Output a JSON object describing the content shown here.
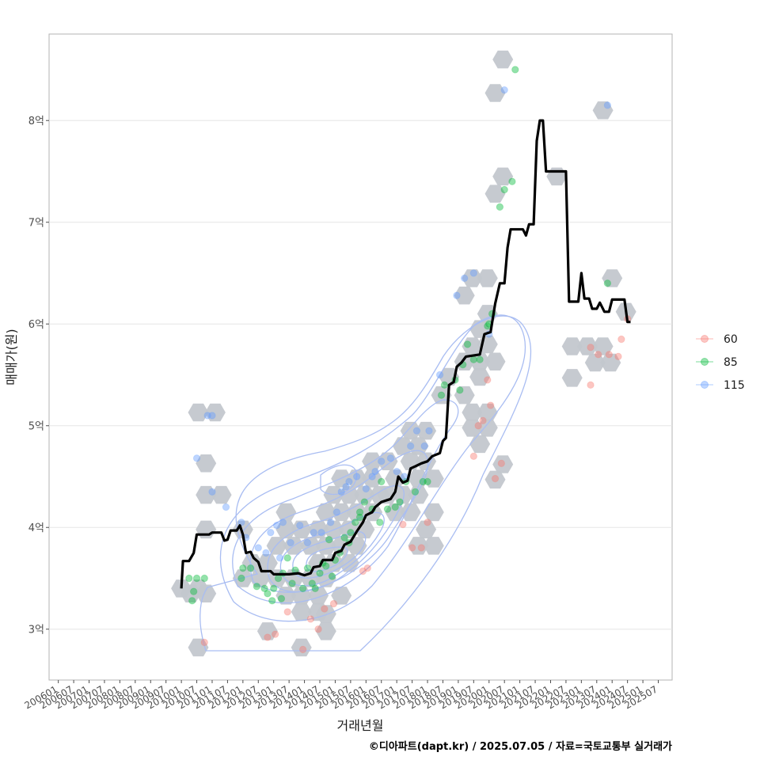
{
  "chart_data": {
    "type": "scatter",
    "xlabel": "거래년월",
    "ylabel": "매매가(원)",
    "caption": "©디아파트(dapt.kr) / 2025.07.05 / 자료=국토교통부 실거래가",
    "x_ticks": [
      "200601",
      "200607",
      "200701",
      "200707",
      "200801",
      "200807",
      "200901",
      "200907",
      "201001",
      "201007",
      "201101",
      "201107",
      "201201",
      "201207",
      "201301",
      "201307",
      "201401",
      "201407",
      "201501",
      "201507",
      "201601",
      "201607",
      "201701",
      "201707",
      "201801",
      "201807",
      "201901",
      "201907",
      "202001",
      "202007",
      "202101",
      "202107",
      "202201",
      "202207",
      "202301",
      "202307",
      "202401",
      "202407",
      "202501",
      "202507"
    ],
    "y_ticks": [
      {
        "value": 3,
        "label": "3억"
      },
      {
        "value": 4,
        "label": "4억"
      },
      {
        "value": 5,
        "label": "5억"
      },
      {
        "value": 6,
        "label": "6억"
      },
      {
        "value": 7,
        "label": "7억"
      },
      {
        "value": 8,
        "label": "8억"
      }
    ],
    "x_range": [
      2005.7,
      2025.95
    ],
    "y_range": [
      2.5,
      8.85
    ],
    "legend": [
      {
        "name": "60",
        "color": "#F8766D"
      },
      {
        "name": "85",
        "color": "#00BA38"
      },
      {
        "name": "115",
        "color": "#619CFF"
      }
    ],
    "median_line": [
      [
        2010.0,
        3.4
      ],
      [
        2010.05,
        3.67
      ],
      [
        2010.25,
        3.67
      ],
      [
        2010.4,
        3.75
      ],
      [
        2010.5,
        3.93
      ],
      [
        2010.9,
        3.93
      ],
      [
        2011.0,
        3.95
      ],
      [
        2011.3,
        3.95
      ],
      [
        2011.4,
        3.87
      ],
      [
        2011.5,
        3.88
      ],
      [
        2011.6,
        3.97
      ],
      [
        2011.8,
        3.97
      ],
      [
        2011.9,
        4.02
      ],
      [
        2012.0,
        3.93
      ],
      [
        2012.1,
        3.75
      ],
      [
        2012.25,
        3.76
      ],
      [
        2012.35,
        3.7
      ],
      [
        2012.5,
        3.66
      ],
      [
        2012.6,
        3.57
      ],
      [
        2012.9,
        3.57
      ],
      [
        2013.0,
        3.54
      ],
      [
        2013.5,
        3.54
      ],
      [
        2013.8,
        3.55
      ],
      [
        2014.0,
        3.53
      ],
      [
        2014.2,
        3.55
      ],
      [
        2014.3,
        3.61
      ],
      [
        2014.5,
        3.62
      ],
      [
        2014.6,
        3.68
      ],
      [
        2014.9,
        3.68
      ],
      [
        2015.0,
        3.75
      ],
      [
        2015.2,
        3.77
      ],
      [
        2015.3,
        3.83
      ],
      [
        2015.5,
        3.86
      ],
      [
        2015.7,
        3.96
      ],
      [
        2015.9,
        4.05
      ],
      [
        2016.0,
        4.12
      ],
      [
        2016.2,
        4.15
      ],
      [
        2016.3,
        4.2
      ],
      [
        2016.5,
        4.25
      ],
      [
        2016.8,
        4.28
      ],
      [
        2016.95,
        4.35
      ],
      [
        2017.05,
        4.5
      ],
      [
        2017.2,
        4.44
      ],
      [
        2017.35,
        4.46
      ],
      [
        2017.45,
        4.58
      ],
      [
        2017.6,
        4.6
      ],
      [
        2017.8,
        4.63
      ],
      [
        2018.0,
        4.65
      ],
      [
        2018.15,
        4.7
      ],
      [
        2018.4,
        4.73
      ],
      [
        2018.5,
        4.85
      ],
      [
        2018.6,
        4.88
      ],
      [
        2018.7,
        5.4
      ],
      [
        2018.85,
        5.43
      ],
      [
        2018.95,
        5.58
      ],
      [
        2019.1,
        5.62
      ],
      [
        2019.25,
        5.68
      ],
      [
        2019.7,
        5.7
      ],
      [
        2019.85,
        5.9
      ],
      [
        2020.05,
        5.92
      ],
      [
        2020.2,
        6.2
      ],
      [
        2020.35,
        6.4
      ],
      [
        2020.5,
        6.4
      ],
      [
        2020.6,
        6.75
      ],
      [
        2020.7,
        6.93
      ],
      [
        2021.1,
        6.93
      ],
      [
        2021.2,
        6.87
      ],
      [
        2021.3,
        6.98
      ],
      [
        2021.45,
        6.98
      ],
      [
        2021.55,
        7.8
      ],
      [
        2021.65,
        8.0
      ],
      [
        2021.75,
        8.0
      ],
      [
        2021.85,
        7.5
      ],
      [
        2022.2,
        7.5
      ],
      [
        2022.5,
        7.5
      ],
      [
        2022.6,
        6.22
      ],
      [
        2022.9,
        6.22
      ],
      [
        2023.0,
        6.5
      ],
      [
        2023.1,
        6.25
      ],
      [
        2023.25,
        6.25
      ],
      [
        2023.35,
        6.15
      ],
      [
        2023.5,
        6.15
      ],
      [
        2023.6,
        6.21
      ],
      [
        2023.75,
        6.12
      ],
      [
        2023.9,
        6.12
      ],
      [
        2024.0,
        6.24
      ],
      [
        2024.4,
        6.24
      ],
      [
        2024.5,
        6.02
      ],
      [
        2024.6,
        6.02
      ]
    ],
    "hexes": [
      [
        2010.0,
        3.4
      ],
      [
        2010.3,
        3.35
      ],
      [
        2010.55,
        3.4
      ],
      [
        2010.8,
        3.35
      ],
      [
        2010.55,
        2.82
      ],
      [
        2010.55,
        5.13
      ],
      [
        2011.1,
        5.13
      ],
      [
        2010.8,
        4.63
      ],
      [
        2010.8,
        4.32
      ],
      [
        2011.3,
        4.32
      ],
      [
        2010.8,
        3.98
      ],
      [
        2012.0,
        3.98
      ],
      [
        2012.0,
        3.5
      ],
      [
        2012.55,
        3.5
      ],
      [
        2012.3,
        3.65
      ],
      [
        2012.8,
        3.65
      ],
      [
        2013.1,
        3.82
      ],
      [
        2013.4,
        3.98
      ],
      [
        2013.4,
        4.15
      ],
      [
        2013.65,
        3.82
      ],
      [
        2013.9,
        3.98
      ],
      [
        2013.1,
        3.5
      ],
      [
        2013.65,
        3.5
      ],
      [
        2014.2,
        3.5
      ],
      [
        2014.7,
        3.5
      ],
      [
        2013.4,
        3.33
      ],
      [
        2013.9,
        3.33
      ],
      [
        2014.45,
        3.33
      ],
      [
        2013.9,
        3.17
      ],
      [
        2014.45,
        3.17
      ],
      [
        2012.8,
        2.98
      ],
      [
        2013.9,
        2.82
      ],
      [
        2014.7,
        2.98
      ],
      [
        2014.7,
        3.15
      ],
      [
        2014.45,
        3.65
      ],
      [
        2014.95,
        3.65
      ],
      [
        2014.2,
        3.82
      ],
      [
        2014.7,
        3.82
      ],
      [
        2014.45,
        3.98
      ],
      [
        2014.95,
        3.98
      ],
      [
        2014.7,
        4.15
      ],
      [
        2015.2,
        4.15
      ],
      [
        2014.95,
        4.32
      ],
      [
        2015.45,
        4.32
      ],
      [
        2015.2,
        4.48
      ],
      [
        2015.7,
        4.48
      ],
      [
        2015.45,
        3.65
      ],
      [
        2015.2,
        3.82
      ],
      [
        2015.7,
        3.82
      ],
      [
        2015.2,
        3.33
      ],
      [
        2015.45,
        3.98
      ],
      [
        2015.95,
        3.98
      ],
      [
        2015.7,
        4.15
      ],
      [
        2016.2,
        4.15
      ],
      [
        2015.95,
        4.32
      ],
      [
        2016.45,
        4.32
      ],
      [
        2016.2,
        4.48
      ],
      [
        2016.2,
        4.65
      ],
      [
        2016.7,
        4.65
      ],
      [
        2016.95,
        4.48
      ],
      [
        2016.7,
        4.32
      ],
      [
        2017.2,
        4.32
      ],
      [
        2016.95,
        4.15
      ],
      [
        2017.45,
        4.15
      ],
      [
        2017.7,
        4.32
      ],
      [
        2017.7,
        4.48
      ],
      [
        2018.2,
        4.48
      ],
      [
        2017.45,
        4.65
      ],
      [
        2017.2,
        4.8
      ],
      [
        2017.7,
        4.8
      ],
      [
        2017.45,
        4.95
      ],
      [
        2017.95,
        4.95
      ],
      [
        2017.95,
        4.65
      ],
      [
        2018.2,
        4.15
      ],
      [
        2017.95,
        3.98
      ],
      [
        2017.7,
        3.82
      ],
      [
        2018.2,
        3.82
      ],
      [
        2018.45,
        5.3
      ],
      [
        2018.7,
        5.48
      ],
      [
        2019.2,
        5.3
      ],
      [
        2019.45,
        5.13
      ],
      [
        2019.2,
        5.63
      ],
      [
        2019.7,
        5.63
      ],
      [
        2019.45,
        5.78
      ],
      [
        2019.7,
        5.48
      ],
      [
        2019.45,
        4.98
      ],
      [
        2019.95,
        4.98
      ],
      [
        2019.7,
        4.82
      ],
      [
        2019.95,
        5.13
      ],
      [
        2019.2,
        6.28
      ],
      [
        2019.45,
        6.45
      ],
      [
        2019.95,
        6.45
      ],
      [
        2019.95,
        6.1
      ],
      [
        2019.7,
        5.95
      ],
      [
        2020.2,
        5.63
      ],
      [
        2019.95,
        5.8
      ],
      [
        2020.2,
        4.47
      ],
      [
        2020.45,
        4.62
      ],
      [
        2020.2,
        7.28
      ],
      [
        2020.45,
        7.45
      ],
      [
        2020.2,
        8.27
      ],
      [
        2020.45,
        8.6
      ],
      [
        2022.2,
        7.45
      ],
      [
        2022.7,
        5.78
      ],
      [
        2022.7,
        5.47
      ],
      [
        2023.2,
        5.78
      ],
      [
        2023.7,
        5.78
      ],
      [
        2023.45,
        5.62
      ],
      [
        2023.95,
        5.62
      ],
      [
        2023.7,
        8.1
      ],
      [
        2024.0,
        6.45
      ],
      [
        2024.45,
        6.12
      ]
    ],
    "series": [
      {
        "name": "60",
        "points": [
          [
            2010.75,
            2.87
          ],
          [
            2012.8,
            2.92
          ],
          [
            2013.05,
            2.95
          ],
          [
            2013.45,
            3.17
          ],
          [
            2013.95,
            2.8
          ],
          [
            2014.2,
            3.1
          ],
          [
            2014.45,
            3.0
          ],
          [
            2014.65,
            3.2
          ],
          [
            2014.95,
            3.25
          ],
          [
            2015.9,
            3.57
          ],
          [
            2016.05,
            3.6
          ],
          [
            2017.2,
            4.03
          ],
          [
            2017.5,
            3.8
          ],
          [
            2017.8,
            3.8
          ],
          [
            2018.0,
            4.05
          ],
          [
            2019.5,
            4.7
          ],
          [
            2019.65,
            5.0
          ],
          [
            2019.8,
            5.05
          ],
          [
            2019.95,
            5.45
          ],
          [
            2020.05,
            5.2
          ],
          [
            2020.2,
            4.48
          ],
          [
            2020.4,
            4.63
          ],
          [
            2023.3,
            5.4
          ],
          [
            2023.3,
            5.77
          ],
          [
            2023.55,
            5.7
          ],
          [
            2023.9,
            5.7
          ],
          [
            2024.2,
            5.68
          ],
          [
            2024.3,
            5.85
          ],
          [
            2024.5,
            6.05
          ]
        ]
      },
      {
        "name": "85",
        "points": [
          [
            2010.25,
            3.5
          ],
          [
            2010.5,
            3.5
          ],
          [
            2010.4,
            3.37
          ],
          [
            2010.35,
            3.28
          ],
          [
            2010.75,
            3.5
          ],
          [
            2011.95,
            3.5
          ],
          [
            2012.0,
            3.6
          ],
          [
            2012.45,
            3.42
          ],
          [
            2012.7,
            3.4
          ],
          [
            2012.8,
            3.35
          ],
          [
            2012.95,
            3.28
          ],
          [
            2013.0,
            3.4
          ],
          [
            2013.15,
            3.5
          ],
          [
            2013.3,
            3.55
          ],
          [
            2013.45,
            3.7
          ],
          [
            2013.6,
            3.45
          ],
          [
            2013.7,
            3.58
          ],
          [
            2013.95,
            3.4
          ],
          [
            2014.1,
            3.6
          ],
          [
            2014.35,
            3.4
          ],
          [
            2014.5,
            3.55
          ],
          [
            2014.6,
            3.65
          ],
          [
            2014.7,
            3.62
          ],
          [
            2014.9,
            3.52
          ],
          [
            2015.0,
            3.68
          ],
          [
            2015.15,
            3.75
          ],
          [
            2015.3,
            3.9
          ],
          [
            2015.5,
            3.95
          ],
          [
            2015.65,
            4.05
          ],
          [
            2015.8,
            4.1
          ],
          [
            2015.95,
            4.25
          ],
          [
            2016.2,
            4.18
          ],
          [
            2016.45,
            4.05
          ],
          [
            2016.7,
            4.18
          ],
          [
            2016.95,
            4.2
          ],
          [
            2017.1,
            4.25
          ],
          [
            2017.3,
            4.45
          ],
          [
            2017.6,
            4.35
          ],
          [
            2017.85,
            4.45
          ],
          [
            2018.0,
            4.45
          ],
          [
            2018.45,
            5.3
          ],
          [
            2018.55,
            5.4
          ],
          [
            2018.9,
            5.45
          ],
          [
            2019.05,
            5.35
          ],
          [
            2019.15,
            5.6
          ],
          [
            2019.3,
            5.8
          ],
          [
            2019.5,
            5.65
          ],
          [
            2019.7,
            5.65
          ],
          [
            2019.95,
            5.98
          ],
          [
            2020.0,
            6.0
          ],
          [
            2020.1,
            6.1
          ],
          [
            2020.35,
            7.15
          ],
          [
            2020.5,
            7.32
          ],
          [
            2020.75,
            7.4
          ],
          [
            2020.85,
            8.5
          ],
          [
            2023.85,
            6.4
          ],
          [
            2015.45,
            3.85
          ],
          [
            2015.8,
            4.15
          ],
          [
            2016.5,
            4.45
          ],
          [
            2014.25,
            3.45
          ],
          [
            2013.25,
            3.3
          ],
          [
            2012.25,
            3.6
          ],
          [
            2014.8,
            3.88
          ]
        ]
      },
      {
        "name": "115",
        "points": [
          [
            2010.5,
            4.68
          ],
          [
            2010.85,
            5.1
          ],
          [
            2011.0,
            5.1
          ],
          [
            2011.0,
            4.35
          ],
          [
            2011.45,
            4.2
          ],
          [
            2011.95,
            4.05
          ],
          [
            2012.1,
            3.9
          ],
          [
            2012.5,
            3.8
          ],
          [
            2012.9,
            3.95
          ],
          [
            2013.1,
            4.02
          ],
          [
            2013.3,
            4.05
          ],
          [
            2013.55,
            3.85
          ],
          [
            2013.85,
            4.02
          ],
          [
            2014.1,
            3.85
          ],
          [
            2014.3,
            3.95
          ],
          [
            2014.55,
            3.95
          ],
          [
            2014.85,
            4.05
          ],
          [
            2015.05,
            4.15
          ],
          [
            2015.2,
            4.35
          ],
          [
            2015.45,
            4.45
          ],
          [
            2015.7,
            4.5
          ],
          [
            2016.0,
            4.38
          ],
          [
            2016.3,
            4.55
          ],
          [
            2016.5,
            4.65
          ],
          [
            2016.8,
            4.68
          ],
          [
            2017.0,
            4.55
          ],
          [
            2017.25,
            4.5
          ],
          [
            2017.45,
            4.8
          ],
          [
            2017.65,
            4.95
          ],
          [
            2017.9,
            4.8
          ],
          [
            2018.05,
            4.95
          ],
          [
            2018.4,
            5.5
          ],
          [
            2018.95,
            6.28
          ],
          [
            2019.2,
            6.45
          ],
          [
            2019.5,
            6.5
          ],
          [
            2020.0,
            5.9
          ],
          [
            2020.5,
            8.3
          ],
          [
            2023.85,
            8.15
          ],
          [
            2015.35,
            4.4
          ],
          [
            2016.2,
            4.5
          ],
          [
            2013.2,
            3.7
          ],
          [
            2012.75,
            3.75
          ]
        ]
      }
    ]
  }
}
